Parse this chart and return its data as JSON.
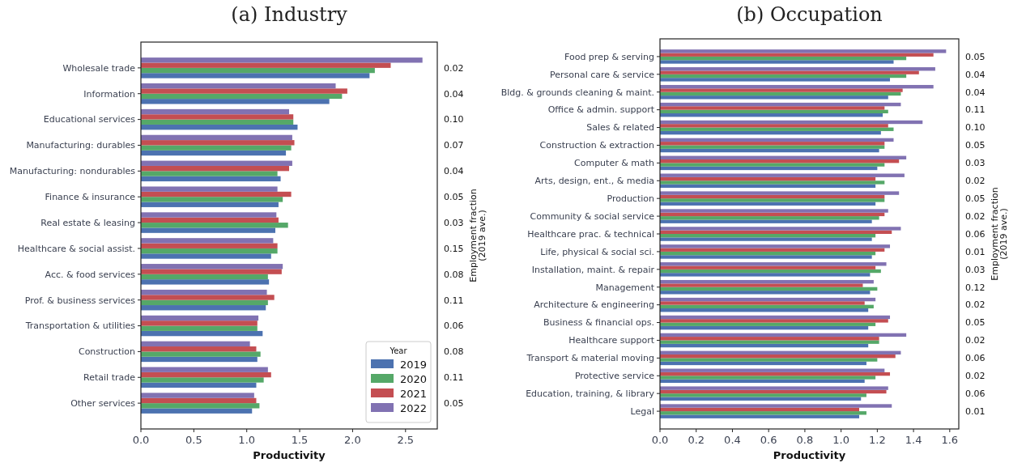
{
  "chart_data": [
    {
      "type": "bar",
      "orientation": "horizontal",
      "title": "(a) Industry",
      "xlabel": "Productivity",
      "y2label": "Employment fraction\n(2019 ave.)",
      "legend": "bottom right",
      "legend_title": "Year",
      "categories": [
        "Wholesale trade",
        "Information",
        "Educational services",
        "Manufacturing: durables",
        "Manufacturing: nondurables",
        "Finance & insurance",
        "Real estate & leasing",
        "Healthcare & social assist.",
        "Acc. & food services",
        "Prof. & business services",
        "Transportation & utilities",
        "Construction",
        "Retail trade",
        "Other services"
      ],
      "series": [
        {
          "name": "2019",
          "color": "#4c72b0",
          "values": [
            2.16,
            1.78,
            1.48,
            1.37,
            1.32,
            1.3,
            1.27,
            1.23,
            1.21,
            1.18,
            1.15,
            1.1,
            1.09,
            1.05
          ]
        },
        {
          "name": "2020",
          "color": "#55a868",
          "values": [
            2.21,
            1.9,
            1.44,
            1.42,
            1.29,
            1.34,
            1.39,
            1.29,
            1.2,
            1.2,
            1.1,
            1.13,
            1.16,
            1.12
          ]
        },
        {
          "name": "2021",
          "color": "#c44e52",
          "values": [
            2.36,
            1.95,
            1.44,
            1.45,
            1.4,
            1.42,
            1.3,
            1.29,
            1.33,
            1.26,
            1.1,
            1.09,
            1.23,
            1.09
          ]
        },
        {
          "name": "2022",
          "color": "#8172b2",
          "values": [
            2.66,
            1.84,
            1.4,
            1.43,
            1.43,
            1.29,
            1.28,
            1.25,
            1.34,
            1.19,
            1.11,
            1.03,
            1.2,
            1.07
          ]
        }
      ],
      "xlim": [
        0,
        2.8
      ],
      "xticks": [
        {
          "value": 0,
          "label": "0.0"
        },
        {
          "value": 0.5,
          "label": "0.5"
        },
        {
          "value": 1,
          "label": "1.0"
        },
        {
          "value": 1.5,
          "label": "1.5"
        },
        {
          "value": 2,
          "label": "2.0"
        },
        {
          "value": 2.5,
          "label": "2.5"
        }
      ],
      "annotations": [
        "0.02",
        "0.04",
        "0.10",
        "0.07",
        "0.04",
        "0.05",
        "0.03",
        "0.15",
        "0.08",
        "0.11",
        "0.06",
        "0.08",
        "0.11",
        "0.05"
      ]
    },
    {
      "type": "bar",
      "orientation": "horizontal",
      "title": "(b) Occupation",
      "xlabel": "Productivity",
      "y2label": "Employment fraction\n(2019 ave.)",
      "categories": [
        "Food prep & serving",
        "Personal care & service",
        "Bldg. & grounds cleaning & maint.",
        "Office & admin. support",
        "Sales & related",
        "Construction & extraction",
        "Computer & math",
        "Arts, design, ent., & media",
        "Production",
        "Community & social service",
        "Healthcare prac. & technical",
        "Life, physical & social sci.",
        "Installation, maint. & repair",
        "Management",
        "Architecture & engineering",
        "Business & financial ops.",
        "Healthcare support",
        "Transport & material moving",
        "Protective service",
        "Education, training, & library",
        "Legal"
      ],
      "series": [
        {
          "color": "#4c72b0",
          "values": [
            1.29,
            1.27,
            1.26,
            1.23,
            1.22,
            1.21,
            1.2,
            1.19,
            1.19,
            1.17,
            1.17,
            1.17,
            1.16,
            1.16,
            1.15,
            1.15,
            1.15,
            1.14,
            1.13,
            1.11,
            1.1
          ]
        },
        {
          "color": "#55a868",
          "values": [
            1.36,
            1.36,
            1.33,
            1.26,
            1.29,
            1.24,
            1.24,
            1.24,
            1.24,
            1.21,
            1.19,
            1.19,
            1.22,
            1.2,
            1.18,
            1.19,
            1.21,
            1.2,
            1.19,
            1.14,
            1.14
          ]
        },
        {
          "color": "#c44e52",
          "values": [
            1.51,
            1.43,
            1.34,
            1.24,
            1.26,
            1.24,
            1.32,
            1.19,
            1.24,
            1.24,
            1.28,
            1.24,
            1.19,
            1.12,
            1.13,
            1.26,
            1.21,
            1.3,
            1.27,
            1.25,
            1.1
          ]
        },
        {
          "color": "#8172b2",
          "values": [
            1.58,
            1.52,
            1.51,
            1.33,
            1.45,
            1.29,
            1.36,
            1.35,
            1.32,
            1.26,
            1.33,
            1.27,
            1.25,
            1.18,
            1.19,
            1.27,
            1.36,
            1.33,
            1.24,
            1.26,
            1.28
          ]
        }
      ],
      "xlim": [
        0,
        1.65
      ],
      "xticks": [
        {
          "value": 0,
          "label": "0.0"
        },
        {
          "value": 0.2,
          "label": "0.2"
        },
        {
          "value": 0.4,
          "label": "0.4"
        },
        {
          "value": 0.6,
          "label": "0.6"
        },
        {
          "value": 0.8,
          "label": "0.8"
        },
        {
          "value": 1,
          "label": "1.0"
        },
        {
          "value": 1.2,
          "label": "1.2"
        },
        {
          "value": 1.4,
          "label": "1.4"
        },
        {
          "value": 1.6,
          "label": "1.6"
        }
      ],
      "annotations": [
        "0.05",
        "0.04",
        "0.04",
        "0.11",
        "0.10",
        "0.05",
        "0.03",
        "0.02",
        "0.05",
        "0.02",
        "0.06",
        "0.01",
        "0.03",
        "0.12",
        "0.02",
        "0.05",
        "0.02",
        "0.06",
        "0.02",
        "0.06",
        "0.01"
      ]
    }
  ]
}
